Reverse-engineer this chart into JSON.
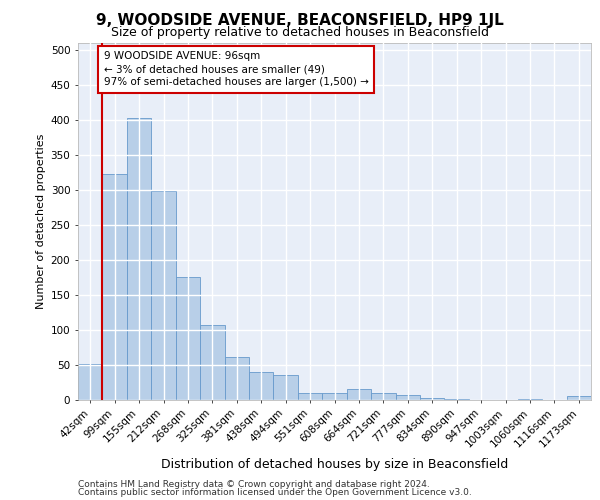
{
  "title1": "9, WOODSIDE AVENUE, BEACONSFIELD, HP9 1JL",
  "title2": "Size of property relative to detached houses in Beaconsfield",
  "xlabel": "Distribution of detached houses by size in Beaconsfield",
  "ylabel": "Number of detached properties",
  "categories": [
    "42sqm",
    "99sqm",
    "155sqm",
    "212sqm",
    "268sqm",
    "325sqm",
    "381sqm",
    "438sqm",
    "494sqm",
    "551sqm",
    "608sqm",
    "664sqm",
    "721sqm",
    "777sqm",
    "834sqm",
    "890sqm",
    "947sqm",
    "1003sqm",
    "1060sqm",
    "1116sqm",
    "1173sqm"
  ],
  "values": [
    52,
    322,
    403,
    298,
    175,
    107,
    62,
    40,
    35,
    10,
    10,
    15,
    10,
    7,
    3,
    1,
    0,
    0,
    1,
    0,
    5
  ],
  "bar_color": "#b8cfe8",
  "bar_edge_color": "#6699cc",
  "annotation_text": "9 WOODSIDE AVENUE: 96sqm\n← 3% of detached houses are smaller (49)\n97% of semi-detached houses are larger (1,500) →",
  "ylim": [
    0,
    510
  ],
  "yticks": [
    0,
    50,
    100,
    150,
    200,
    250,
    300,
    350,
    400,
    450,
    500
  ],
  "footer1": "Contains HM Land Registry data © Crown copyright and database right 2024.",
  "footer2": "Contains public sector information licensed under the Open Government Licence v3.0.",
  "bg_color": "#ffffff",
  "plot_bg_color": "#e8eef8",
  "grid_color": "#ffffff",
  "annotation_box_color": "#ffffff",
  "annotation_box_edge": "#cc0000",
  "red_line_color": "#cc0000",
  "title1_fontsize": 11,
  "title2_fontsize": 9,
  "ylabel_fontsize": 8,
  "xlabel_fontsize": 9,
  "tick_fontsize": 7.5,
  "footer_fontsize": 6.5
}
